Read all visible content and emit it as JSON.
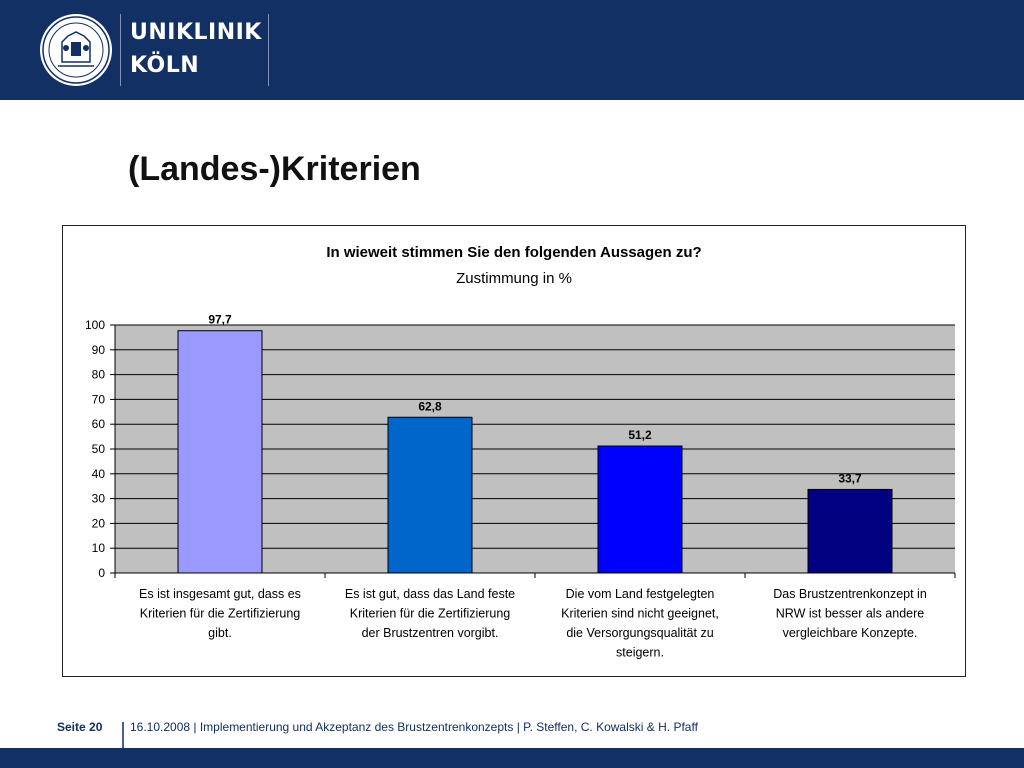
{
  "header": {
    "logo_line1": "UNIKLINIK",
    "logo_line2": "KÖLN",
    "seal_icon": "university-seal-icon",
    "background": "#123063"
  },
  "slide": {
    "title": "(Landes-)Kriterien"
  },
  "footer": {
    "page_label": "Seite 20",
    "text": "16.10.2008 | Implementierung und Akzeptanz des Brustzentrenkonzepts | P. Steffen, C. Kowalski & H. Pfaff"
  },
  "chart_data": {
    "type": "bar",
    "title": "In wieweit stimmen Sie den folgenden Aussagen zu?",
    "subtitle": "Zustimmung in %",
    "categories": [
      [
        "Es ist insgesamt gut, dass es",
        "Kriterien für die Zertifizierung",
        "gibt."
      ],
      [
        "Es ist gut, dass das Land feste",
        "Kriterien für die Zertifizierung",
        "der Brustzentren vorgibt."
      ],
      [
        "Die vom Land festgelegten",
        "Kriterien sind nicht geeignet,",
        "die Versorgungsqualität zu",
        "steigern."
      ],
      [
        "Das Brustzentrenkonzept in",
        "NRW ist besser als andere",
        "vergleichbare Konzepte."
      ]
    ],
    "values": [
      97.7,
      62.8,
      51.2,
      33.7
    ],
    "value_labels": [
      "97,7",
      "62,8",
      "51,2",
      "33,7"
    ],
    "bar_colors": [
      "#9999ff",
      "#0066cc",
      "#0000ff",
      "#000080"
    ],
    "ylim": [
      0,
      100
    ],
    "yticks": [
      0,
      10,
      20,
      30,
      40,
      50,
      60,
      70,
      80,
      90,
      100
    ],
    "grid": true,
    "plot_background": "#c0c0c0",
    "legend": "none"
  }
}
